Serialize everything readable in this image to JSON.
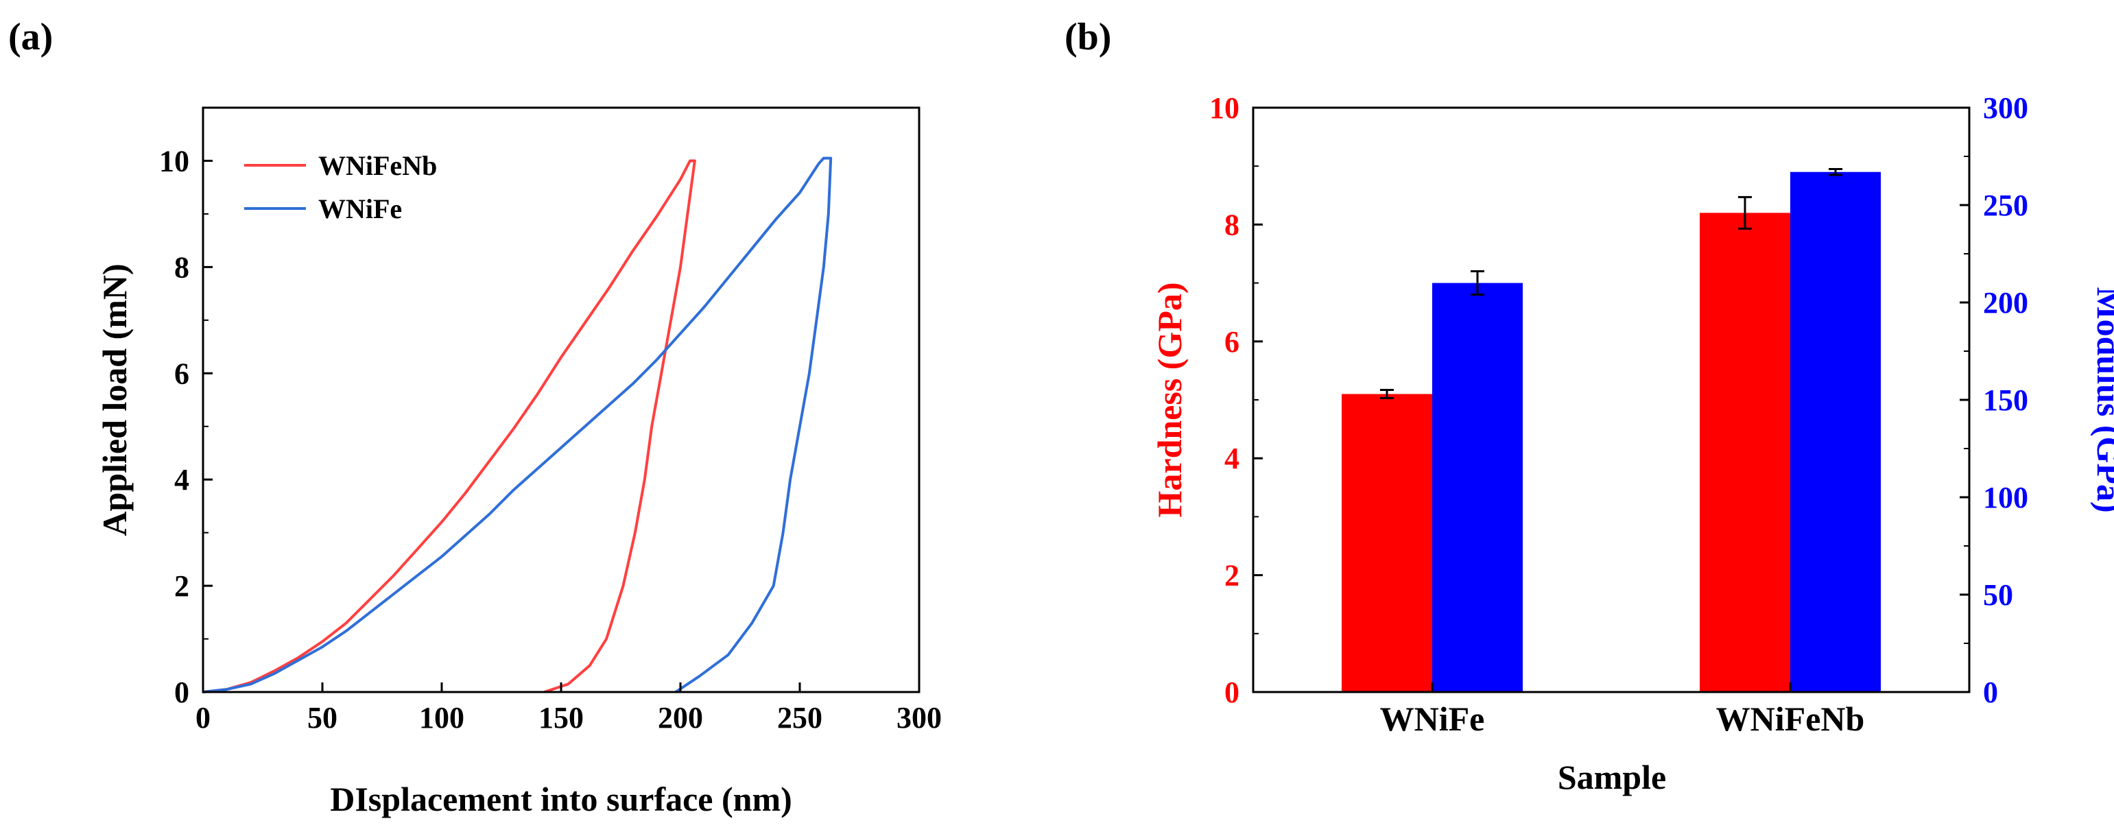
{
  "chart_data": [
    {
      "panel": "(a)",
      "type": "line",
      "title": "",
      "xlabel": "DIsplacement into surface (nm)",
      "ylabel": "Applied load (mN)",
      "xlim": [
        0,
        300
      ],
      "ylim": [
        0,
        11
      ],
      "xticks": [
        "0",
        "50",
        "100",
        "150",
        "200",
        "250",
        "300"
      ],
      "yticks": [
        "0",
        "2",
        "4",
        "6",
        "8",
        "10"
      ],
      "legend": "top-left",
      "grid": false,
      "series": [
        {
          "name": "WNiFeNb",
          "color": "#ff4040",
          "points": [
            [
              0,
              0
            ],
            [
              10,
              0.05
            ],
            [
              20,
              0.18
            ],
            [
              30,
              0.4
            ],
            [
              40,
              0.65
            ],
            [
              50,
              0.95
            ],
            [
              60,
              1.3
            ],
            [
              70,
              1.75
            ],
            [
              80,
              2.2
            ],
            [
              90,
              2.7
            ],
            [
              100,
              3.2
            ],
            [
              110,
              3.75
            ],
            [
              120,
              4.35
            ],
            [
              130,
              4.95
            ],
            [
              140,
              5.6
            ],
            [
              150,
              6.3
            ],
            [
              160,
              6.95
            ],
            [
              170,
              7.6
            ],
            [
              180,
              8.3
            ],
            [
              190,
              8.95
            ],
            [
              200,
              9.65
            ],
            [
              204,
              10.0
            ],
            [
              206,
              10.0
            ],
            [
              203,
              9.0
            ],
            [
              200,
              8.0
            ],
            [
              196,
              7.0
            ],
            [
              192,
              6.0
            ],
            [
              188,
              5.0
            ],
            [
              185,
              4.0
            ],
            [
              181,
              3.0
            ],
            [
              176,
              2.0
            ],
            [
              169,
              1.0
            ],
            [
              162,
              0.5
            ],
            [
              153,
              0.15
            ],
            [
              143,
              0
            ]
          ]
        },
        {
          "name": "WNiFe",
          "color": "#2f6fd8",
          "points": [
            [
              0,
              0
            ],
            [
              10,
              0.05
            ],
            [
              20,
              0.15
            ],
            [
              30,
              0.35
            ],
            [
              40,
              0.6
            ],
            [
              50,
              0.85
            ],
            [
              60,
              1.15
            ],
            [
              70,
              1.5
            ],
            [
              80,
              1.85
            ],
            [
              90,
              2.2
            ],
            [
              100,
              2.55
            ],
            [
              110,
              2.95
            ],
            [
              120,
              3.35
            ],
            [
              130,
              3.8
            ],
            [
              140,
              4.2
            ],
            [
              150,
              4.6
            ],
            [
              160,
              5.0
            ],
            [
              170,
              5.4
            ],
            [
              180,
              5.8
            ],
            [
              190,
              6.25
            ],
            [
              200,
              6.75
            ],
            [
              210,
              7.25
            ],
            [
              220,
              7.8
            ],
            [
              230,
              8.35
            ],
            [
              240,
              8.9
            ],
            [
              250,
              9.4
            ],
            [
              258,
              9.95
            ],
            [
              260,
              10.05
            ],
            [
              263,
              10.05
            ],
            [
              262,
              9.0
            ],
            [
              260,
              8.0
            ],
            [
              257,
              7.0
            ],
            [
              254,
              6.0
            ],
            [
              250,
              5.0
            ],
            [
              246,
              4.0
            ],
            [
              243,
              3.0
            ],
            [
              239,
              2.0
            ],
            [
              230,
              1.3
            ],
            [
              220,
              0.7
            ],
            [
              208,
              0.3
            ],
            [
              198,
              0
            ]
          ]
        }
      ]
    },
    {
      "panel": "(b)",
      "type": "bar",
      "title": "",
      "xlabel": "Sample",
      "ylabel_left": "Hardness (GPa)",
      "ylabel_right": "Modulus (GPa)",
      "categories": [
        "WNiFe",
        "WNiFeNb"
      ],
      "ylim_left": [
        0,
        10
      ],
      "ylim_right": [
        0,
        300
      ],
      "yticks_left": [
        "0",
        "2",
        "4",
        "6",
        "8",
        "10"
      ],
      "yticks_right": [
        "0",
        "50",
        "100",
        "150",
        "200",
        "250",
        "300"
      ],
      "left_color": "#ff0000",
      "right_color": "#0000ff",
      "series": [
        {
          "axis": "left",
          "color": "#ff0000",
          "values": [
            5.1,
            8.2
          ],
          "errors": [
            0.07,
            0.27
          ]
        },
        {
          "axis": "right",
          "color": "#0000ff",
          "values": [
            210,
            267
          ],
          "errors": [
            6,
            1.5
          ]
        }
      ]
    }
  ]
}
